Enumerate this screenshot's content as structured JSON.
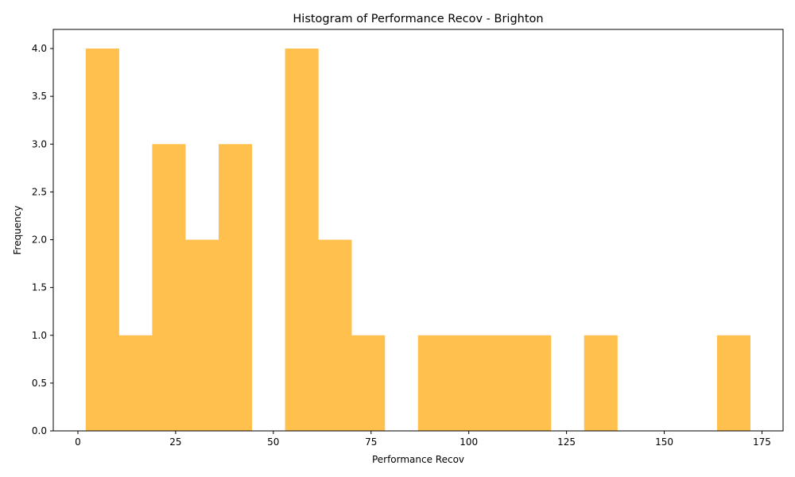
{
  "chart_data": {
    "type": "bar",
    "subtype": "histogram",
    "title": "Histogram of Performance Recov - Brighton",
    "xlabel": "Performance Recov",
    "ylabel": "Frequency",
    "xlim": [
      -6.3,
      180.4
    ],
    "ylim": [
      0,
      4.2
    ],
    "xticks": [
      0,
      25,
      50,
      75,
      100,
      125,
      150,
      175
    ],
    "yticks": [
      0.0,
      0.5,
      1.0,
      1.5,
      2.0,
      2.5,
      3.0,
      3.5,
      4.0
    ],
    "ytick_labels": [
      "0.0",
      "0.5",
      "1.0",
      "1.5",
      "2.0",
      "2.5",
      "3.0",
      "3.5",
      "4.0"
    ],
    "bin_edges": [
      2.0,
      10.5,
      19.0,
      27.5,
      36.0,
      44.5,
      53.0,
      61.5,
      70.0,
      78.5,
      87.0,
      95.5,
      104.0,
      112.5,
      121.0,
      129.5,
      138.0,
      146.5,
      155.0,
      163.5,
      172.0
    ],
    "counts": [
      4,
      1,
      3,
      2,
      3,
      0,
      4,
      2,
      1,
      0,
      1,
      1,
      1,
      1,
      0,
      1,
      0,
      0,
      0,
      1
    ],
    "bar_color": "#FFC04D",
    "grid": false
  }
}
